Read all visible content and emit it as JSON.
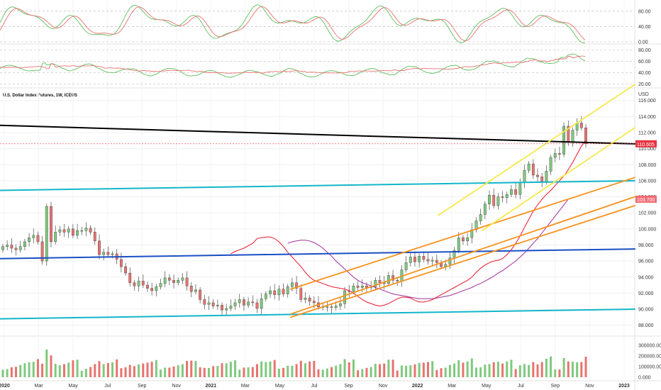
{
  "chart_data": {
    "type": "candlestick",
    "symbol_title": "U.S. Dollar Index Futures, 1W, ICEUS",
    "currency_label": "USD",
    "colors": {
      "up": "#7fc97f",
      "down": "#e8736f",
      "ema_fast": "#e8172b",
      "ema_slow": "#a0309f",
      "black_line": "#000000",
      "cyan_line": "#12b6c9",
      "blue_line": "#1a4fc4",
      "orange_line": "#f7921e",
      "yellow_line": "#f5e94a",
      "stoch_k": "#5fbe5f",
      "stoch_d": "#e87070",
      "price_label_bg": "#e8333f",
      "price_label_bg2": "#f06c74",
      "grid": "#f0f0f0"
    },
    "price_axis": {
      "ticks": [
        "116.000",
        "114.000",
        "112.000",
        "110.000",
        "108.000",
        "106.000",
        "104.000",
        "102.000",
        "100.000",
        "98.000",
        "96.000",
        "94.000",
        "92.000",
        "90.000",
        "88.000"
      ],
      "ylim": [
        87.0,
        117.3
      ]
    },
    "current_price_label": "110.605",
    "ema_price_label": "103.700",
    "volume_axis": {
      "ticks": [
        "300000.000",
        "200000.000",
        "100000.000",
        "0.000"
      ],
      "ylim": [
        0,
        360000
      ]
    },
    "stoch_axis": {
      "ticks": [
        "80.00",
        "40.00",
        "0.00"
      ],
      "ylim": [
        -2,
        100
      ]
    },
    "rsi_axis": {
      "ticks": [
        "80.00",
        "60.00",
        "40.00",
        "20.00"
      ],
      "ylim": [
        18,
        87
      ]
    },
    "time_axis": [
      "2020",
      "Mar",
      "May",
      "Jul",
      "Sep",
      "Nov",
      "2021",
      "Mar",
      "May",
      "Jul",
      "Sep",
      "Nov",
      "2022",
      "Mar",
      "May",
      "Jul",
      "Sep",
      "Nov",
      "2023"
    ],
    "weekly_closes": [
      97.8,
      98.0,
      97.6,
      97.4,
      97.8,
      98.4,
      98.9,
      99.2,
      98.4,
      96.0,
      102.8,
      98.4,
      99.6,
      99.9,
      99.6,
      100.0,
      99.2,
      99.8,
      99.8,
      100.1,
      99.6,
      98.5,
      96.8,
      97.1,
      96.8,
      96.9,
      96.2,
      95.3,
      94.5,
      93.3,
      92.9,
      93.5,
      93.0,
      92.6,
      92.3,
      92.8,
      93.2,
      93.9,
      93.6,
      93.3,
      93.6,
      93.9,
      92.9,
      92.2,
      92.4,
      91.2,
      90.6,
      90.8,
      90.4,
      90.5,
      89.9,
      90.1,
      90.4,
      90.8,
      91.2,
      90.5,
      90.9,
      90.8,
      90.1,
      91.3,
      91.9,
      92.3,
      91.8,
      92.5,
      91.9,
      92.8,
      93.3,
      92.6,
      91.2,
      91.4,
      91.0,
      90.8,
      90.3,
      90.3,
      90.3,
      90.2,
      90.4,
      90.7,
      92.3,
      92.2,
      92.9,
      92.7,
      92.9,
      92.7,
      92.8,
      93.6,
      93.3,
      93.2,
      94.2,
      93.6,
      93.5,
      94.9,
      95.8,
      96.5,
      95.9,
      96.6,
      96.2,
      96.0,
      96.1,
      95.8,
      95.3,
      95.6,
      96.4,
      97.3,
      98.9,
      98.5,
      98.9,
      99.9,
      101.0,
      101.8,
      103.1,
      104.2,
      102.9,
      104.0,
      103.9,
      104.3,
      104.9,
      104.3,
      105.8,
      107.3,
      108.1,
      106.7,
      106.5,
      105.9,
      107.2,
      108.9,
      109.4,
      109.3,
      112.8,
      110.8,
      112.3,
      113.2,
      112.6,
      110.6
    ],
    "ema_fast_series": [
      96.9,
      97.2,
      97.4,
      97.6,
      97.9,
      98.2,
      98.8,
      98.9,
      99.0,
      99.0,
      98.8,
      98.4,
      97.8,
      97.1,
      96.5,
      95.9,
      95.3,
      94.6,
      94.0,
      93.6,
      93.4,
      93.2,
      93.0,
      92.8,
      92.7,
      92.6,
      92.5,
      92.3,
      92.0,
      91.6,
      91.2,
      90.9,
      90.7,
      90.5,
      90.4,
      90.5,
      90.7,
      91.0,
      91.3,
      91.5,
      91.5,
      91.4,
      91.1,
      90.9,
      90.9,
      91.0,
      91.2,
      91.5,
      91.8,
      92.1,
      92.4,
      92.7,
      93.0,
      93.3,
      93.6,
      94.0,
      94.6,
      95.1,
      95.5,
      95.8,
      96.0,
      96.1,
      96.3,
      96.8,
      97.4,
      98.2,
      99.1,
      100.2,
      101.2,
      102.2,
      103.0,
      103.7,
      104.3,
      104.8,
      105.4,
      106.0,
      106.6,
      107.4,
      108.3,
      109.3,
      110.3,
      111.0
    ],
    "ema_slow_series": [
      98.2,
      98.4,
      98.5,
      98.6,
      98.6,
      98.5,
      98.3,
      98.0,
      97.6,
      97.1,
      96.6,
      96.0,
      95.5,
      95.0,
      94.5,
      94.0,
      93.6,
      93.3,
      93.1,
      92.9,
      92.7,
      92.5,
      92.3,
      92.1,
      91.9,
      91.8,
      91.7,
      91.6,
      91.5,
      91.4,
      91.3,
      91.3,
      91.3,
      91.3,
      91.4,
      91.5,
      91.6,
      91.7,
      91.9,
      92.1,
      92.3,
      92.5,
      92.7,
      93.0,
      93.2,
      93.5,
      93.8,
      94.1,
      94.5,
      94.8,
      95.2,
      95.6,
      96.0,
      96.5,
      97.0,
      97.6,
      98.2,
      98.8,
      99.5,
      100.2,
      100.9,
      101.6,
      102.3,
      103.0,
      103.7
    ],
    "trendlines": [
      {
        "name": "black-resistance",
        "from": [
          "2020",
          112.9
        ],
        "to": [
          "2023",
          110.6
        ]
      },
      {
        "name": "cyan-upper",
        "from": [
          "2020",
          104.8
        ],
        "to": [
          "2023",
          106.0
        ]
      },
      {
        "name": "cyan-lower",
        "from": [
          "2020",
          88.8
        ],
        "to": [
          "2023",
          90.0
        ]
      },
      {
        "name": "blue-midline",
        "from": [
          "2020",
          96.3
        ],
        "to": [
          "2023",
          97.5
        ]
      },
      {
        "name": "orange-channel-top",
        "from": [
          "Jun 2021",
          92.5
        ],
        "to": [
          "2023",
          106.4
        ]
      },
      {
        "name": "orange-channel-mid",
        "from": [
          "Jun 2021",
          89.4
        ],
        "to": [
          "2023",
          104.0
        ]
      },
      {
        "name": "orange-channel-bottom",
        "from": [
          "Jun 2021",
          89.0
        ],
        "to": [
          "2023",
          102.9
        ]
      },
      {
        "name": "yellow-channel-top",
        "from": [
          "Apr 2022",
          101.7
        ],
        "to": [
          "2023",
          118.0
        ]
      },
      {
        "name": "yellow-channel-bottom",
        "from": [
          "May 2022",
          99.8
        ],
        "to": [
          "2023",
          112.6
        ]
      }
    ]
  }
}
